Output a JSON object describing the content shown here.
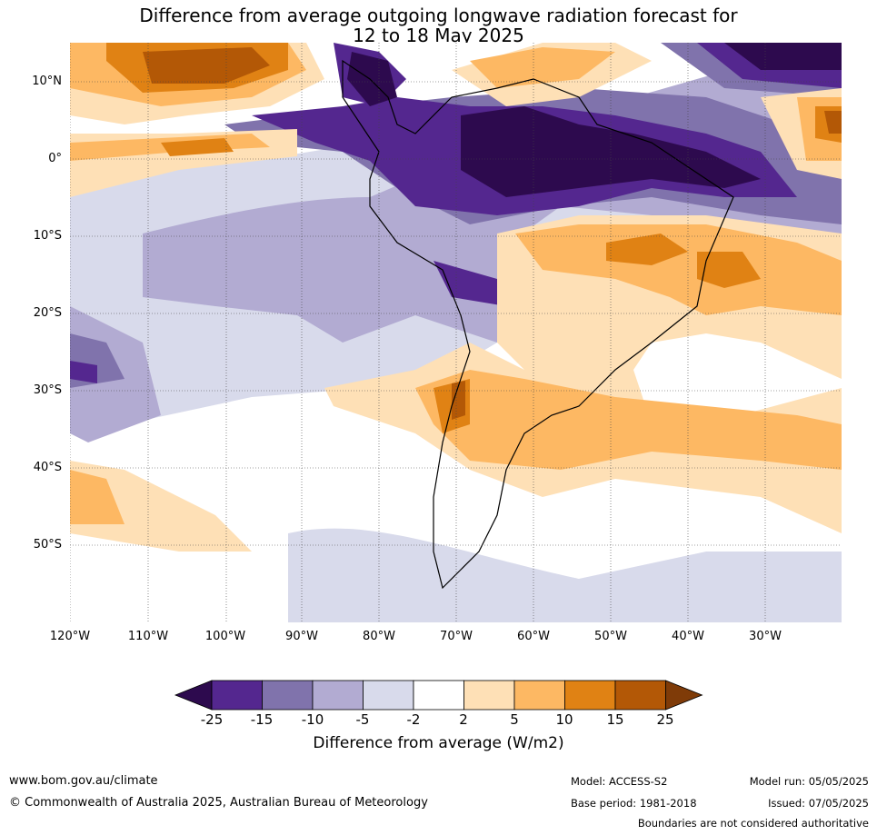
{
  "title": {
    "line1": "Difference from average outgoing longwave radiation forecast for",
    "line2": "12 to 18 May 2025"
  },
  "map": {
    "region": "South America",
    "lat_labels": [
      "10°N",
      "0°",
      "10°S",
      "20°S",
      "30°S",
      "40°S",
      "50°S"
    ],
    "lon_labels": [
      "120°W",
      "110°W",
      "100°W",
      "90°W",
      "80°W",
      "70°W",
      "60°W",
      "50°W",
      "40°W",
      "30°W"
    ]
  },
  "colorbar": {
    "title": "Difference from average (W/m2)",
    "tick_labels": [
      "-25",
      "-15",
      "-10",
      "-5",
      "-2",
      "2",
      "5",
      "10",
      "15",
      "25"
    ],
    "colors": [
      "#2d0a4e",
      "#54278f",
      "#8073ac",
      "#b2abd2",
      "#d8daeb",
      "#ffffff",
      "#fee0b6",
      "#fdb863",
      "#e08214",
      "#b35806",
      "#7f3b08"
    ]
  },
  "footer": {
    "website": "www.bom.gov.au/climate",
    "copyright": "© Commonwealth of Australia 2025, Australian Bureau of Meteorology",
    "model": "Model: ACCESS-S2",
    "base_period": "Base period: 1981-2018",
    "model_run": "Model run: 05/05/2025",
    "issued": "Issued: 07/05/2025",
    "disclaimer": "Boundaries are not considered authoritative"
  }
}
